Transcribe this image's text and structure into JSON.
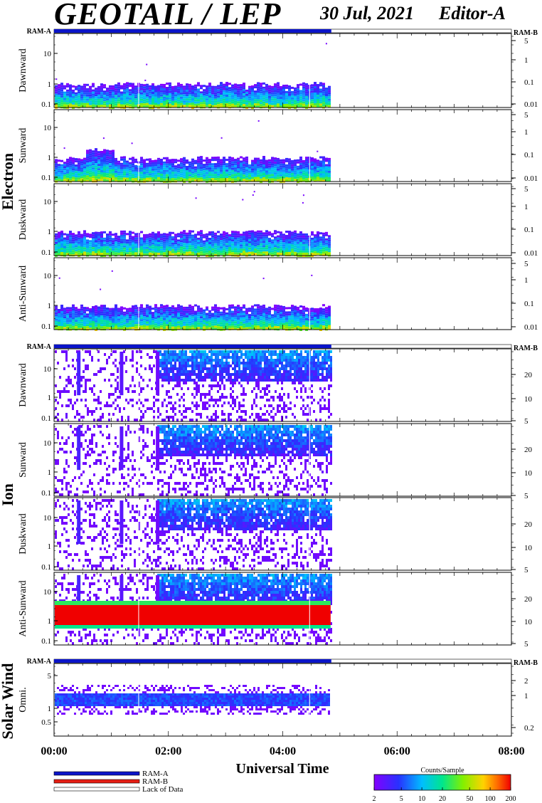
{
  "header": {
    "title": "GEOTAIL / LEP",
    "date": "30 Jul, 2021",
    "editor": "Editor-A"
  },
  "colors": {
    "ram_a": "#0a14c8",
    "ram_b": "#e61e14",
    "lack_of_data": "#ffffff"
  },
  "chart_data": {
    "type": "heatmap",
    "time_axis": {
      "label": "Universal Time",
      "ticks": [
        "00:00",
        "02:00",
        "04:00",
        "06:00",
        "08:00"
      ],
      "range_hours": [
        0,
        8
      ],
      "data_end_hours": 4.85
    },
    "groups": [
      {
        "name": "Electron",
        "ram_a_label": "RAM-A",
        "ram_b_label": "RAM-B",
        "panels": [
          {
            "name": "Dawnward",
            "left_ticks": [
              "10",
              "1",
              "0.1"
            ],
            "right_ticks": [
              "5",
              "1",
              "0.1",
              "0.01"
            ]
          },
          {
            "name": "Sunward",
            "left_ticks": [
              "10",
              "1",
              "0.1"
            ],
            "right_ticks": [
              "5",
              "1",
              "0.1",
              "0.01"
            ]
          },
          {
            "name": "Duskward",
            "left_ticks": [
              "10",
              "1",
              "0.1"
            ],
            "right_ticks": [
              "5",
              "1",
              "0.1",
              "0.01"
            ]
          },
          {
            "name": "Anti-Sunward",
            "left_ticks": [
              "10",
              "1",
              "0.1"
            ],
            "right_ticks": [
              "5",
              "1",
              "0.1",
              "0.01"
            ]
          }
        ]
      },
      {
        "name": "Ion",
        "ram_a_label": "RAM-A",
        "ram_b_label": "RAM-B",
        "panels": [
          {
            "name": "Dawnward",
            "left_ticks": [
              "10",
              "1",
              "0.1"
            ],
            "right_ticks": [
              "20",
              "10",
              "5"
            ]
          },
          {
            "name": "Sunward",
            "left_ticks": [
              "10",
              "1",
              "0.1"
            ],
            "right_ticks": [
              "20",
              "10",
              "5"
            ]
          },
          {
            "name": "Duskward",
            "left_ticks": [
              "10",
              "1",
              "0.1"
            ],
            "right_ticks": [
              "20",
              "10",
              "5"
            ]
          },
          {
            "name": "Anti-Sunward",
            "left_ticks": [
              "10",
              "1",
              "0.1"
            ],
            "right_ticks": [
              "20",
              "10",
              "5"
            ]
          }
        ]
      },
      {
        "name": "Solar Wind",
        "ram_a_label": "RAM-A",
        "ram_b_label": "RAM-B",
        "panels": [
          {
            "name": "Omni.",
            "left_ticks": [
              "5",
              "1",
              "0.5"
            ],
            "right_ticks": [
              "2",
              "1",
              "0.2"
            ]
          }
        ]
      }
    ],
    "colorbar": {
      "title": "Counts/Sample",
      "ticks": [
        "2",
        "5",
        "10",
        "20",
        "50",
        "100",
        "200"
      ]
    },
    "legend": [
      {
        "label": "RAM-A",
        "color": "#0a14c8"
      },
      {
        "label": "RAM-B",
        "color": "#e61e14"
      },
      {
        "label": "Lack of Data",
        "color": "#ffffff"
      }
    ]
  }
}
